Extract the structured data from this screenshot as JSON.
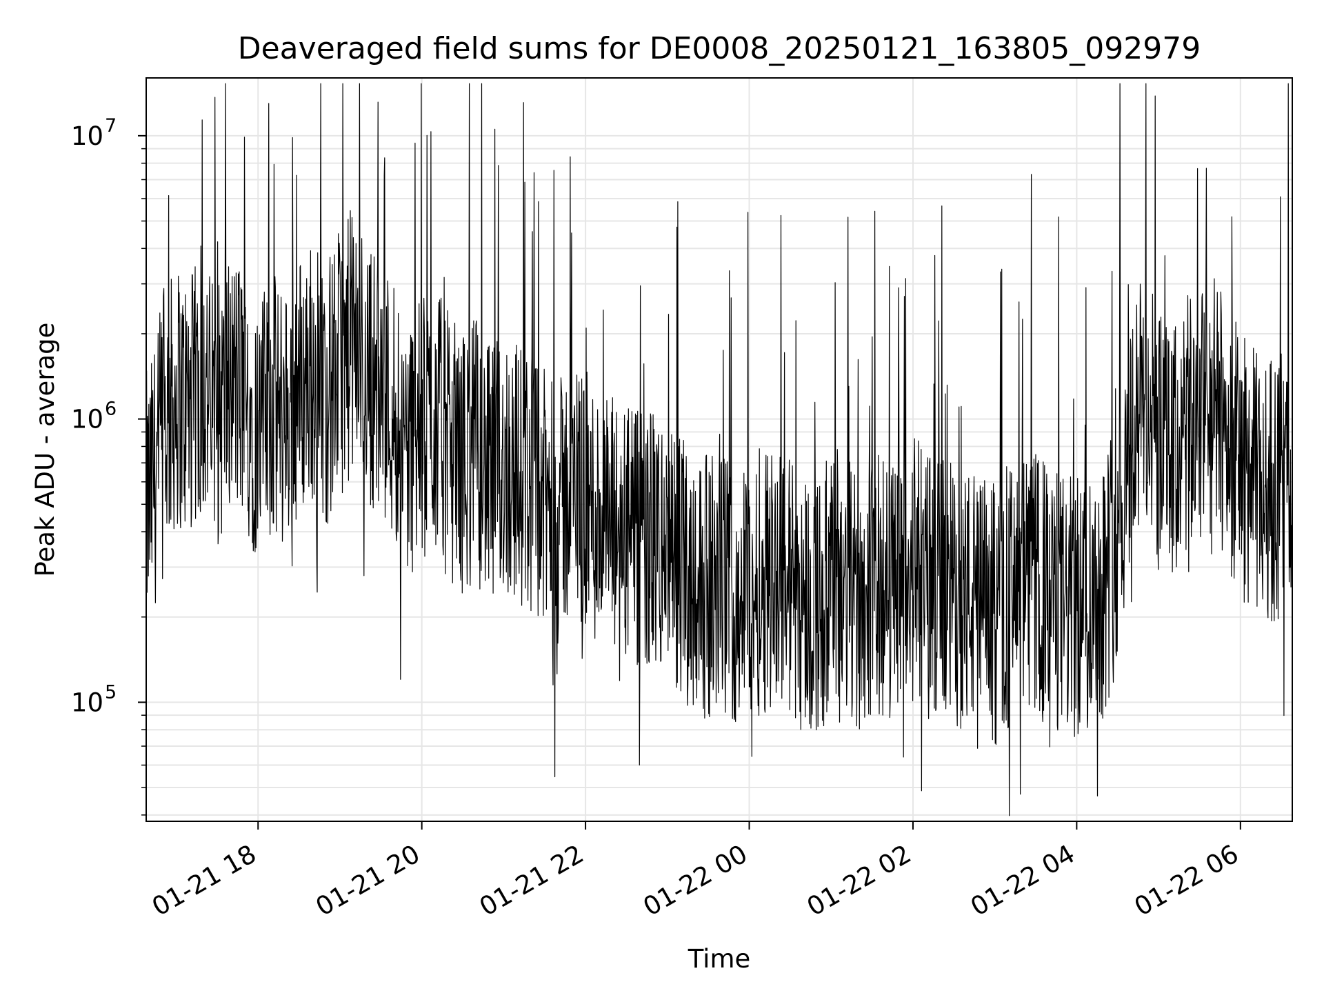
{
  "chart_data": {
    "type": "line",
    "title": "Deaveraged field sums for DE0008_20250121_163805_092979",
    "xlabel": "Time",
    "ylabel": "Peak ADU - average",
    "xlim": [
      "2025-01-21 16:38",
      "2025-01-22 06:38"
    ],
    "ylim": [
      38000,
      16000000
    ],
    "yscale": "log",
    "grid": true,
    "line_color": "#000000",
    "x_ticks": [
      {
        "value": "2025-01-21 18:00",
        "label": "01-21 18"
      },
      {
        "value": "2025-01-21 20:00",
        "label": "01-21 20"
      },
      {
        "value": "2025-01-21 22:00",
        "label": "01-21 22"
      },
      {
        "value": "2025-01-22 00:00",
        "label": "01-22 00"
      },
      {
        "value": "2025-01-22 02:00",
        "label": "01-22 02"
      },
      {
        "value": "2025-01-22 04:00",
        "label": "01-22 04"
      },
      {
        "value": "2025-01-22 06:00",
        "label": "01-22 06"
      }
    ],
    "y_ticks": [
      {
        "value": 100000,
        "base": "10",
        "exp": "5"
      },
      {
        "value": 1000000,
        "base": "10",
        "exp": "6"
      },
      {
        "value": 10000000,
        "base": "10",
        "exp": "7"
      }
    ],
    "series": [
      {
        "x": [
          "2025-01-21 16:40",
          "2025-01-21 16:50",
          "2025-01-21 17:00",
          "2025-01-21 17:10",
          "2025-01-21 17:20",
          "2025-01-21 17:30",
          "2025-01-21 17:40",
          "2025-01-21 17:50",
          "2025-01-21 18:00",
          "2025-01-21 18:10",
          "2025-01-21 18:20",
          "2025-01-21 18:30",
          "2025-01-21 18:40",
          "2025-01-21 18:50",
          "2025-01-21 19:00",
          "2025-01-21 19:10",
          "2025-01-21 19:20",
          "2025-01-21 19:30",
          "2025-01-21 19:40",
          "2025-01-21 19:50",
          "2025-01-21 20:00",
          "2025-01-21 20:10",
          "2025-01-21 20:20",
          "2025-01-21 20:30",
          "2025-01-21 20:40",
          "2025-01-21 20:50",
          "2025-01-21 21:00",
          "2025-01-21 21:10",
          "2025-01-21 21:20",
          "2025-01-21 21:30",
          "2025-01-21 21:40",
          "2025-01-21 21:50",
          "2025-01-21 22:00",
          "2025-01-21 22:10",
          "2025-01-21 22:20",
          "2025-01-21 22:30",
          "2025-01-21 22:40",
          "2025-01-21 22:50",
          "2025-01-21 23:00",
          "2025-01-21 23:10",
          "2025-01-21 23:20",
          "2025-01-21 23:30",
          "2025-01-21 23:40",
          "2025-01-21 23:50",
          "2025-01-22 00:00",
          "2025-01-22 00:10",
          "2025-01-22 00:20",
          "2025-01-22 00:30",
          "2025-01-22 00:40",
          "2025-01-22 00:50",
          "2025-01-22 01:00",
          "2025-01-22 01:10",
          "2025-01-22 01:20",
          "2025-01-22 01:30",
          "2025-01-22 01:40",
          "2025-01-22 01:50",
          "2025-01-22 02:00",
          "2025-01-22 02:10",
          "2025-01-22 02:20",
          "2025-01-22 02:30",
          "2025-01-22 02:40",
          "2025-01-22 02:50",
          "2025-01-22 03:00",
          "2025-01-22 03:10",
          "2025-01-22 03:20",
          "2025-01-22 03:30",
          "2025-01-22 03:40",
          "2025-01-22 03:50",
          "2025-01-22 04:00",
          "2025-01-22 04:10",
          "2025-01-22 04:20",
          "2025-01-22 04:30",
          "2025-01-22 04:40",
          "2025-01-22 04:50",
          "2025-01-22 05:00",
          "2025-01-22 05:10",
          "2025-01-22 05:20",
          "2025-01-22 05:30",
          "2025-01-22 05:40",
          "2025-01-22 05:50",
          "2025-01-22 06:00",
          "2025-01-22 06:10",
          "2025-01-22 06:20",
          "2025-01-22 06:30",
          "2025-01-22 06:38"
        ],
        "y": [
          500000,
          900000,
          1200000,
          1100000,
          1300000,
          1000000,
          1400000,
          1200000,
          900000,
          1100000,
          1000000,
          1300000,
          1500000,
          1200000,
          1600000,
          1800000,
          1500000,
          1300000,
          1100000,
          800000,
          900000,
          1000000,
          800000,
          700000,
          800000,
          600000,
          700000,
          650000,
          600000,
          500000,
          450000,
          600000,
          500000,
          450000,
          400000,
          400000,
          350000,
          380000,
          320000,
          300000,
          280000,
          250000,
          260000,
          240000,
          250000,
          270000,
          300000,
          260000,
          230000,
          220000,
          250000,
          240000,
          230000,
          260000,
          250000,
          280000,
          300000,
          260000,
          250000,
          240000,
          230000,
          220000,
          200000,
          230000,
          250000,
          260000,
          230000,
          220000,
          210000,
          240000,
          260000,
          400000,
          900000,
          1200000,
          800000,
          700000,
          900000,
          1000000,
          1100000,
          900000,
          700000,
          600000,
          550000,
          600000,
          550000
        ]
      }
    ]
  }
}
